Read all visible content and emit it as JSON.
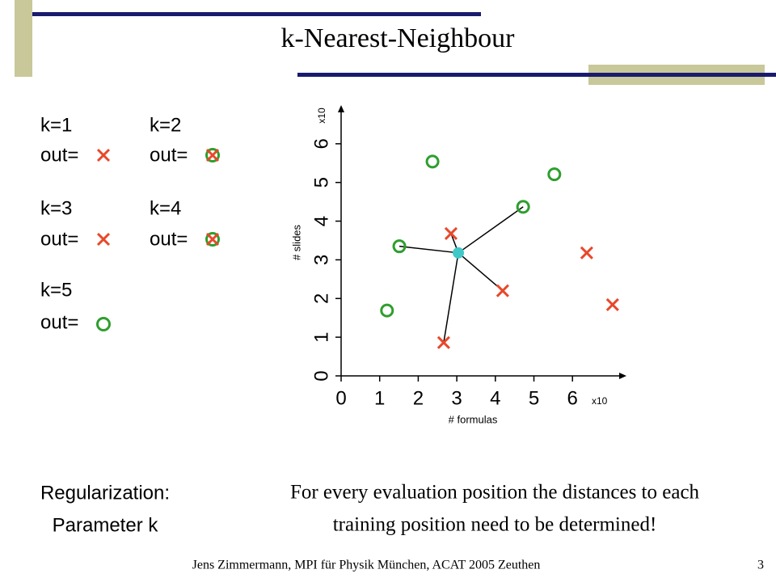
{
  "title": "k-Nearest-Neighbour",
  "results": [
    {
      "k": "k=1",
      "out": "out="
    },
    {
      "k": "k=2",
      "out": "out="
    },
    {
      "k": "k=3",
      "out": "out="
    },
    {
      "k": "k=4",
      "out": "out="
    },
    {
      "k": "k=5",
      "out": "out="
    }
  ],
  "chart_data": {
    "type": "scatter",
    "xlabel": "# formulas",
    "ylabel": "# slides",
    "xmultiplier": "x10",
    "ymultiplier": "x10",
    "xlim": [
      0,
      7.4
    ],
    "ylim": [
      0,
      7
    ],
    "xticks": [
      0,
      1,
      2,
      3,
      4,
      5,
      6
    ],
    "yticks": [
      0,
      1,
      2,
      3,
      4,
      5,
      6
    ],
    "series": [
      {
        "marker": "circle",
        "color": "#2e9e2e",
        "x": [
          1.19,
          1.51,
          2.37,
          4.72,
          5.53
        ],
        "y": [
          1.69,
          3.35,
          5.54,
          4.37,
          5.21
        ]
      },
      {
        "marker": "cross",
        "color": "#e8482a",
        "x": [
          2.85,
          4.19,
          2.66,
          6.37,
          7.04
        ],
        "y": [
          3.68,
          2.2,
          0.86,
          3.18,
          1.84
        ]
      }
    ],
    "query": {
      "x": 3.04,
      "y": 3.18,
      "color": "#40c8c8"
    }
  },
  "regularization": [
    "Regularization:",
    "Parameter k"
  ],
  "note": [
    "For every evaluation position the distances to each",
    "training position need to be determined!"
  ],
  "footer": {
    "text": "Jens Zimmermann, MPI für Physik München, ACAT 2005 Zeuthen",
    "page": "3"
  }
}
